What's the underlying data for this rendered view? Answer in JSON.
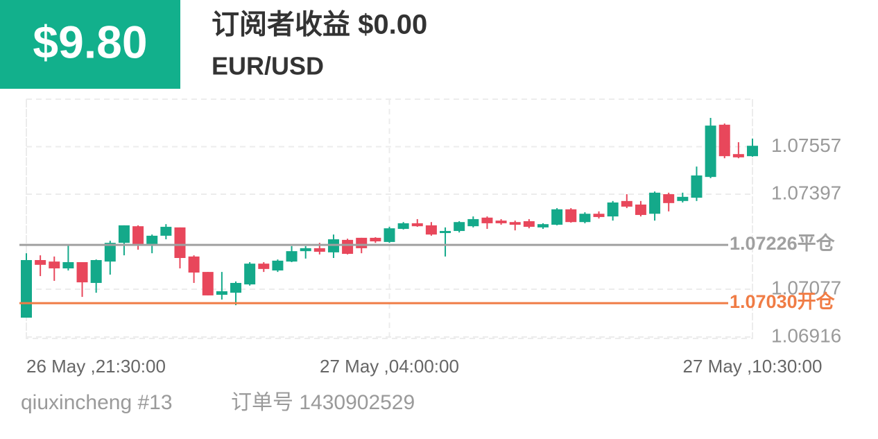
{
  "header": {
    "badge": "$9.80",
    "title": "订阅者收益 $0.00",
    "symbol": "EUR/USD"
  },
  "footer": {
    "account": "qiuxincheng #13",
    "order": "订单号 1430902529"
  },
  "chart_data": {
    "type": "candlestick",
    "categories": [
      "26 May ,21:30:00",
      null,
      null,
      null,
      null,
      null,
      null,
      null,
      null,
      null,
      null,
      null,
      null,
      null,
      null,
      null,
      null,
      null,
      null,
      null,
      null,
      null,
      null,
      null,
      null,
      null,
      "27 May ,04:00:00",
      null,
      null,
      null,
      null,
      null,
      null,
      null,
      null,
      null,
      null,
      null,
      null,
      null,
      null,
      null,
      null,
      null,
      null,
      null,
      null,
      null,
      null,
      null,
      null,
      null,
      "27 May ,10:30:00"
    ],
    "open": [
      1.06981,
      1.07175,
      1.0717,
      1.07147,
      1.07168,
      1.07098,
      1.0717,
      1.07233,
      1.07289,
      1.07229,
      1.07257,
      1.07285,
      1.07187,
      1.07135,
      1.07058,
      1.07065,
      1.07093,
      1.07163,
      1.0714,
      1.0717,
      1.07205,
      1.07215,
      1.07201,
      1.07243,
      1.0725,
      1.0725,
      1.07236,
      1.0728,
      1.07299,
      1.07292,
      1.07266,
      1.07273,
      1.07289,
      1.07318,
      1.07308,
      1.07303,
      1.07306,
      1.07285,
      1.07294,
      1.07346,
      1.07303,
      1.07331,
      1.07322,
      1.07374,
      1.07362,
      1.07331,
      1.07397,
      1.07374,
      1.07385,
      1.07455,
      1.07631,
      1.07532,
      1.07525
    ],
    "high": [
      1.07198,
      1.07191,
      1.07187,
      1.07226,
      1.07168,
      1.07177,
      1.0724,
      1.07292,
      1.07292,
      1.07261,
      1.07296,
      1.07285,
      1.07191,
      1.07135,
      1.07135,
      1.07103,
      1.07168,
      1.07168,
      1.07177,
      1.07222,
      1.07222,
      1.07233,
      1.07261,
      1.07247,
      1.0725,
      1.07252,
      1.07287,
      1.07303,
      1.07313,
      1.07303,
      1.07285,
      1.07306,
      1.07322,
      1.07322,
      1.07313,
      1.07308,
      1.07313,
      1.07299,
      1.0735,
      1.0735,
      1.07336,
      1.07339,
      1.07374,
      1.07397,
      1.07374,
      1.07406,
      1.07402,
      1.07402,
      1.0749,
      1.07654,
      1.07635,
      1.07572,
      1.07584
    ],
    "low": [
      1.06981,
      1.07121,
      1.07105,
      1.0714,
      1.07051,
      1.07065,
      1.07126,
      1.07191,
      1.0721,
      1.07198,
      1.07245,
      1.07147,
      1.07098,
      1.07056,
      1.07042,
      1.07023,
      1.07089,
      1.07135,
      1.07135,
      1.07168,
      1.0718,
      1.07194,
      1.07182,
      1.07194,
      1.07198,
      1.07233,
      1.07233,
      1.07278,
      1.07287,
      1.07257,
      1.07187,
      1.07268,
      1.07285,
      1.0728,
      1.07294,
      1.07275,
      1.07282,
      1.0728,
      1.07292,
      1.07301,
      1.07299,
      1.07315,
      1.07308,
      1.0735,
      1.07322,
      1.07308,
      1.07339,
      1.07369,
      1.07374,
      1.07451,
      1.07518,
      1.07518,
      1.07523
    ],
    "close": [
      1.07175,
      1.07159,
      1.07147,
      1.07168,
      1.071,
      1.07175,
      1.07233,
      1.07292,
      1.07229,
      1.07257,
      1.07287,
      1.07182,
      1.07133,
      1.07056,
      1.0707,
      1.07098,
      1.07163,
      1.07145,
      1.07173,
      1.07205,
      1.07215,
      1.07203,
      1.07245,
      1.07196,
      1.07215,
      1.07238,
      1.07282,
      1.07299,
      1.07289,
      1.07261,
      1.07273,
      1.07303,
      1.07313,
      1.07299,
      1.07299,
      1.07294,
      1.07287,
      1.07296,
      1.07346,
      1.07303,
      1.07331,
      1.0732,
      1.07369,
      1.07355,
      1.07327,
      1.07402,
      1.07367,
      1.07388,
      1.0746,
      1.07628,
      1.07525,
      1.07521,
      1.0756
    ],
    "up_color": "#14a98a",
    "down_color": "#e8475b",
    "ylim": [
      1.06911,
      1.07717
    ],
    "yticks": [
      1.06916,
      1.07077,
      1.07397,
      1.07557
    ],
    "grid": true,
    "reference_lines": [
      {
        "price": {
          "value": 1.07226,
          "label": "1.07226"
        },
        "tag": "平仓",
        "color": "#a0a0a0"
      },
      {
        "price": {
          "value": 1.0703,
          "label": "1.07030"
        },
        "tag": "开仓",
        "color": "#f07c45"
      }
    ]
  }
}
